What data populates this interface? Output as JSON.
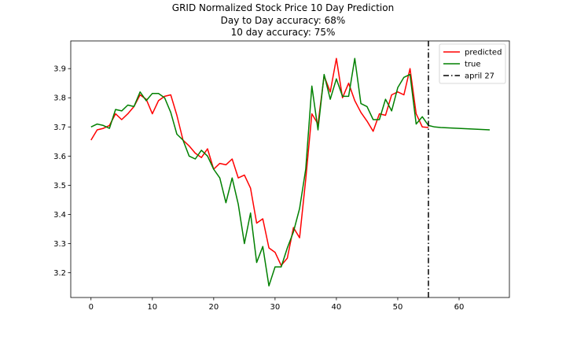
{
  "chart_data": {
    "type": "line",
    "title": "GRID Normalized Stock Price 10 Day Prediction",
    "subtitle_lines": [
      "Day to Day accuracy: 68%",
      "10 day accuracy: 75%"
    ],
    "xlabel": "",
    "ylabel": "",
    "xlim": [
      -3.3,
      68.2
    ],
    "ylim": [
      3.115,
      3.995
    ],
    "xticks": [
      0,
      10,
      20,
      30,
      40,
      50,
      60
    ],
    "yticks": [
      3.2,
      3.3,
      3.4,
      3.5,
      3.6,
      3.7,
      3.8,
      3.9
    ],
    "ytick_labels": [
      "3.2",
      "3.3",
      "3.4",
      "3.5",
      "3.6",
      "3.7",
      "3.8",
      "3.9"
    ],
    "grid": false,
    "legend_position": "top-right",
    "series": [
      {
        "name": "predicted",
        "color": "#ff0000",
        "x": [
          0,
          1,
          2,
          3,
          4,
          5,
          6,
          7,
          8,
          9,
          10,
          11,
          12,
          13,
          14,
          15,
          16,
          17,
          18,
          19,
          20,
          21,
          22,
          23,
          24,
          25,
          26,
          27,
          28,
          29,
          30,
          31,
          32,
          33,
          34,
          35,
          36,
          37,
          38,
          39,
          40,
          41,
          42,
          43,
          44,
          45,
          46,
          47,
          48,
          49,
          50,
          51,
          52,
          53,
          54,
          55
        ],
        "values": [
          3.655,
          3.69,
          3.695,
          3.705,
          3.745,
          3.725,
          3.745,
          3.77,
          3.81,
          3.795,
          3.745,
          3.79,
          3.805,
          3.81,
          3.74,
          3.655,
          3.635,
          3.61,
          3.595,
          3.625,
          3.555,
          3.575,
          3.57,
          3.59,
          3.525,
          3.535,
          3.49,
          3.37,
          3.385,
          3.285,
          3.27,
          3.225,
          3.25,
          3.355,
          3.32,
          3.52,
          3.745,
          3.71,
          3.875,
          3.82,
          3.935,
          3.8,
          3.85,
          3.79,
          3.75,
          3.72,
          3.685,
          3.745,
          3.74,
          3.81,
          3.82,
          3.81,
          3.9,
          3.745,
          3.7,
          3.698
        ]
      },
      {
        "name": "true",
        "color": "#008000",
        "x": [
          0,
          1,
          2,
          3,
          4,
          5,
          6,
          7,
          8,
          9,
          10,
          11,
          12,
          13,
          14,
          15,
          16,
          17,
          18,
          19,
          20,
          21,
          22,
          23,
          24,
          25,
          26,
          27,
          28,
          29,
          30,
          31,
          32,
          33,
          34,
          35,
          36,
          37,
          38,
          39,
          40,
          41,
          42,
          43,
          44,
          45,
          46,
          47,
          48,
          49,
          50,
          51,
          52,
          53,
          54,
          55,
          56,
          57,
          58,
          59,
          60,
          61,
          62,
          63,
          64,
          65
        ],
        "values": [
          3.7,
          3.71,
          3.705,
          3.695,
          3.76,
          3.755,
          3.775,
          3.77,
          3.82,
          3.79,
          3.815,
          3.815,
          3.8,
          3.75,
          3.675,
          3.655,
          3.6,
          3.59,
          3.62,
          3.6,
          3.555,
          3.525,
          3.44,
          3.525,
          3.435,
          3.3,
          3.405,
          3.235,
          3.29,
          3.155,
          3.22,
          3.22,
          3.285,
          3.34,
          3.42,
          3.555,
          3.84,
          3.69,
          3.88,
          3.795,
          3.865,
          3.805,
          3.805,
          3.935,
          3.78,
          3.77,
          3.725,
          3.725,
          3.795,
          3.755,
          3.835,
          3.87,
          3.88,
          3.71,
          3.735,
          3.705,
          3.7,
          3.698,
          3.697,
          3.696,
          3.695,
          3.694,
          3.693,
          3.692,
          3.691,
          3.69
        ]
      }
    ],
    "vertical_line": {
      "label": "april 27",
      "x": 55,
      "style": "dash-dot",
      "color": "#000000"
    }
  }
}
